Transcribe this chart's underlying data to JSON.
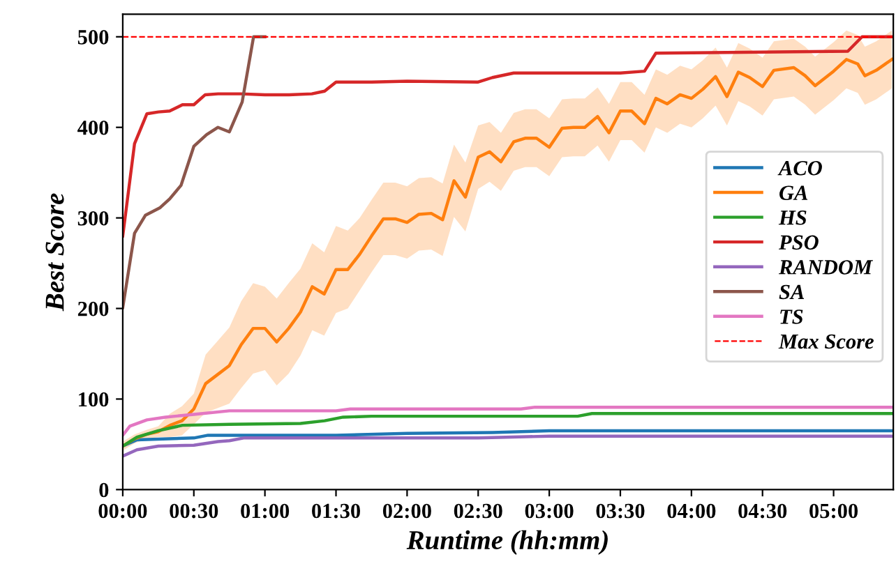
{
  "chart_data": {
    "type": "line",
    "xlabel": "Runtime (hh:mm)",
    "ylabel": "Best Score",
    "xlim": [
      0,
      5.42
    ],
    "ylim": [
      0,
      525
    ],
    "xticks": [
      {
        "value": 0,
        "label": "00:00"
      },
      {
        "value": 0.5,
        "label": "00:30"
      },
      {
        "value": 1,
        "label": "01:00"
      },
      {
        "value": 1.5,
        "label": "01:30"
      },
      {
        "value": 2,
        "label": "02:00"
      },
      {
        "value": 2.5,
        "label": "02:30"
      },
      {
        "value": 3,
        "label": "03:00"
      },
      {
        "value": 3.5,
        "label": "03:30"
      },
      {
        "value": 4,
        "label": "04:00"
      },
      {
        "value": 4.5,
        "label": "04:30"
      },
      {
        "value": 5,
        "label": "05:00"
      }
    ],
    "yticks": [
      0,
      100,
      200,
      300,
      400,
      500
    ],
    "grid": false,
    "legend": "right",
    "line_style": "solid",
    "marker": "none",
    "series": [
      {
        "name": "ACO",
        "color": "#1f77b4",
        "x": [
          0,
          0.1,
          0.5,
          0.6,
          1.0,
          1.5,
          2.0,
          2.6,
          3.0,
          5.42
        ],
        "values": [
          48,
          55,
          57,
          60,
          60,
          60,
          62,
          63,
          65,
          65
        ]
      },
      {
        "name": "GA",
        "color": "#ff7f0e",
        "x": [
          0,
          0.083,
          0.167,
          0.25,
          0.333,
          0.417,
          0.5,
          0.583,
          0.667,
          0.75,
          0.833,
          0.917,
          1.0,
          1.083,
          1.167,
          1.25,
          1.333,
          1.417,
          1.5,
          1.583,
          1.667,
          1.75,
          1.833,
          1.917,
          2.0,
          2.083,
          2.17,
          2.25,
          2.33,
          2.41,
          2.5,
          2.58,
          2.66,
          2.75,
          2.83,
          2.91,
          3.0,
          3.09,
          3.17,
          3.25,
          3.34,
          3.42,
          3.5,
          3.58,
          3.67,
          3.75,
          3.83,
          3.92,
          4.0,
          4.08,
          4.17,
          4.25,
          4.33,
          4.41,
          4.5,
          4.58,
          4.72,
          4.8,
          4.87,
          5.0,
          5.09,
          5.17,
          5.22,
          5.3,
          5.41
        ],
        "values": [
          48,
          56,
          61,
          64,
          71,
          76,
          89,
          117,
          127,
          137,
          160,
          178,
          178,
          163,
          178,
          196,
          224,
          216,
          243,
          243,
          260,
          280,
          299,
          299,
          295,
          304,
          305,
          298,
          341,
          323,
          367,
          373,
          362,
          384,
          388,
          388,
          378,
          399,
          400,
          400,
          412,
          394,
          418,
          418,
          404,
          432,
          426,
          436,
          432,
          442,
          456,
          434,
          461,
          455,
          445,
          463,
          466,
          457,
          446,
          462,
          475,
          470,
          457,
          463,
          475
        ],
        "lower": [
          43,
          51,
          56,
          58,
          58,
          60,
          72,
          85,
          90,
          95,
          112,
          128,
          132,
          115,
          128,
          148,
          176,
          170,
          195,
          200,
          220,
          240,
          259,
          259,
          255,
          264,
          265,
          258,
          301,
          285,
          332,
          340,
          330,
          352,
          356,
          356,
          346,
          367,
          368,
          368,
          380,
          362,
          386,
          386,
          372,
          400,
          394,
          404,
          400,
          410,
          424,
          402,
          429,
          423,
          413,
          431,
          434,
          425,
          414,
          430,
          443,
          438,
          425,
          431,
          443
        ],
        "upper": [
          53,
          61,
          66,
          70,
          84,
          92,
          106,
          149,
          164,
          179,
          208,
          228,
          224,
          211,
          228,
          244,
          272,
          262,
          291,
          286,
          300,
          320,
          339,
          339,
          335,
          344,
          345,
          338,
          381,
          361,
          402,
          406,
          394,
          416,
          420,
          420,
          410,
          431,
          432,
          432,
          444,
          426,
          450,
          450,
          436,
          464,
          458,
          468,
          464,
          474,
          488,
          466,
          493,
          487,
          477,
          495,
          498,
          489,
          478,
          494,
          507,
          502,
          489,
          495,
          507
        ]
      },
      {
        "name": "HS",
        "color": "#2ca02c",
        "x": [
          0,
          0.1,
          0.25,
          0.42,
          0.75,
          1.25,
          1.42,
          1.55,
          1.75,
          3.2,
          3.3,
          5.42
        ],
        "values": [
          48,
          58,
          65,
          71,
          72,
          73,
          76,
          80,
          81,
          81,
          84,
          84
        ]
      },
      {
        "name": "PSO",
        "color": "#d62728",
        "x": [
          0,
          0.083,
          0.17,
          0.25,
          0.33,
          0.42,
          0.5,
          0.58,
          0.67,
          0.83,
          1.0,
          1.17,
          1.33,
          1.42,
          1.5,
          1.75,
          2.0,
          2.5,
          2.6,
          2.75,
          3.5,
          3.67,
          3.75,
          5.1,
          5.2,
          5.42
        ],
        "values": [
          280,
          382,
          415,
          417,
          418,
          425,
          425,
          436,
          437,
          437,
          436,
          436,
          437,
          440,
          450,
          450,
          451,
          450,
          455,
          460,
          460,
          462,
          482,
          484,
          500,
          500
        ]
      },
      {
        "name": "RANDOM",
        "color": "#9467bd",
        "x": [
          0,
          0.1,
          0.25,
          0.5,
          0.67,
          0.75,
          0.85,
          2.5,
          3.0,
          5.42
        ],
        "values": [
          37,
          44,
          48,
          49,
          53,
          54,
          57,
          57,
          59,
          59
        ]
      },
      {
        "name": "SA",
        "color": "#8c564b",
        "x": [
          0,
          0.083,
          0.16,
          0.26,
          0.33,
          0.41,
          0.5,
          0.59,
          0.67,
          0.75,
          0.84,
          0.92,
          1.0
        ],
        "values": [
          201,
          283,
          303,
          311,
          321,
          336,
          379,
          392,
          400,
          395,
          428,
          500,
          500
        ]
      },
      {
        "name": "TS",
        "color": "#e377c2",
        "x": [
          0,
          0.05,
          0.17,
          0.3,
          0.5,
          0.75,
          1.5,
          1.6,
          2.8,
          2.9,
          5.42
        ],
        "values": [
          60,
          70,
          77,
          80,
          83,
          87,
          87,
          89,
          89,
          91,
          91
        ]
      }
    ],
    "ref_lines": [
      {
        "axis": "y",
        "value": 500,
        "label": "Max Score",
        "color": "#ff0000",
        "line_style": "dashed"
      }
    ]
  }
}
